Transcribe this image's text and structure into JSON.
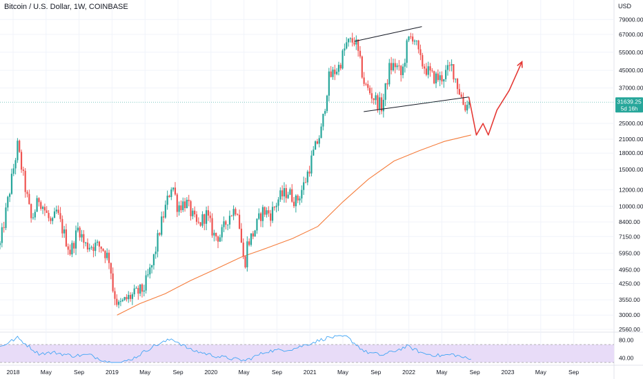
{
  "title": "Bitcoin / U.S. Dollar, 1W, COINBASE",
  "currency": "USD",
  "price_tag": {
    "price": "31639.25",
    "countdown": "5d 16h"
  },
  "colors": {
    "up": "#26a69a",
    "down": "#ef5350",
    "ma": "#f57c3b",
    "projection": "#e53935",
    "channel": "#131722",
    "rsi": "#42a5f5",
    "rsi_band": "#e8dcf8",
    "price_line": "#26a69a"
  },
  "chart_data": {
    "type": "candlestick",
    "y_scale": "log",
    "ylim": [
      2560,
      98000
    ],
    "y_ticks": [
      "79000.00",
      "67000.00",
      "55000.00",
      "45000.00",
      "37000.00",
      "31639.25",
      "25000.00",
      "21000.00",
      "18000.00",
      "15000.00",
      "12000.00",
      "10000.00",
      "8400.00",
      "7150.00",
      "5950.00",
      "4950.00",
      "4250.00",
      "3550.00",
      "3000.00",
      "2560.00"
    ],
    "x_ticks": [
      "2018",
      "May",
      "Sep",
      "2019",
      "May",
      "Sep",
      "2020",
      "May",
      "Sep",
      "2021",
      "May",
      "Sep",
      "2022",
      "May",
      "Sep",
      "2023",
      "May",
      "Sep"
    ],
    "xlim": [
      "2017-10-15",
      "2023-11-01"
    ],
    "price_series_dates": [
      "2017-10-15",
      "2017-12-17",
      "2018-02-05",
      "2018-03-05",
      "2018-04-20",
      "2018-05-05",
      "2018-06-25",
      "2018-07-25",
      "2018-08-15",
      "2018-09-15",
      "2018-10-15",
      "2018-11-14",
      "2018-11-25",
      "2018-12-15",
      "2019-01-15",
      "2019-02-15",
      "2019-03-15",
      "2019-04-15",
      "2019-05-15",
      "2019-06-26",
      "2019-07-15",
      "2019-08-15",
      "2019-09-15",
      "2019-09-26",
      "2019-10-26",
      "2019-11-25",
      "2019-12-18",
      "2020-01-15",
      "2020-02-15",
      "2020-03-12",
      "2020-03-20",
      "2020-04-15",
      "2020-05-15",
      "2020-06-15",
      "2020-07-15",
      "2020-08-15",
      "2020-09-15",
      "2020-10-15",
      "2020-11-15",
      "2020-12-15",
      "2021-01-08",
      "2021-02-15",
      "2021-03-13",
      "2021-04-14",
      "2021-05-19",
      "2021-06-22",
      "2021-07-20",
      "2021-08-15",
      "2021-09-07",
      "2021-09-28",
      "2021-10-20",
      "2021-11-10",
      "2021-12-04",
      "2022-01-15",
      "2022-02-15",
      "2022-03-28",
      "2022-04-15",
      "2022-05-12",
      "2022-06-03"
    ],
    "price_series_values": [
      6500,
      19500,
      8500,
      11000,
      8000,
      9500,
      6000,
      8000,
      6500,
      6500,
      6400,
      5500,
      4000,
      3300,
      3600,
      3800,
      4000,
      5200,
      8000,
      13000,
      10000,
      10500,
      8500,
      8000,
      9200,
      7200,
      7200,
      9000,
      10000,
      5000,
      6500,
      7500,
      9500,
      9200,
      11000,
      11800,
      10500,
      13000,
      18000,
      23500,
      41000,
      47000,
      60000,
      63000,
      38000,
      33000,
      30000,
      46000,
      48000,
      42000,
      62000,
      67000,
      50000,
      42000,
      41000,
      47000,
      39000,
      30000,
      31639.25
    ],
    "ma_200w": {
      "name": "",
      "dates": [
        "2018-12-10",
        "2019-03-01",
        "2019-06-01",
        "2019-09-01",
        "2019-12-01",
        "2020-03-01",
        "2020-06-01",
        "2020-09-01",
        "2020-12-01",
        "2021-03-01",
        "2021-06-01",
        "2021-09-01",
        "2021-12-01",
        "2022-03-01",
        "2022-06-05"
      ],
      "values": [
        3000,
        3400,
        3800,
        4400,
        5000,
        5700,
        6300,
        7000,
        8000,
        10500,
        13500,
        16500,
        18500,
        20500,
        22000
      ]
    },
    "channel_upper": {
      "dates": [
        "2021-04-12",
        "2021-12-10"
      ],
      "values": [
        62000,
        73000
      ]
    },
    "channel_lower": {
      "dates": [
        "2021-05-15",
        "2022-05-28"
      ],
      "values": [
        28500,
        33500
      ]
    },
    "projection": {
      "dates": [
        "2022-05-28",
        "2022-06-24",
        "2022-07-18",
        "2022-08-06",
        "2022-09-06",
        "2022-10-20",
        "2022-12-05"
      ],
      "values": [
        33500,
        22000,
        25000,
        22000,
        29000,
        36000,
        49500
      ]
    },
    "rsi": {
      "ylim": [
        30,
        90
      ],
      "y_ticks": [
        "80.00",
        "40.00"
      ],
      "band": [
        30,
        70
      ],
      "dates": [
        "2017-10-15",
        "2017-12-17",
        "2018-03-01",
        "2018-05-01",
        "2018-07-01",
        "2018-09-01",
        "2018-11-14",
        "2018-12-15",
        "2019-02-15",
        "2019-04-15",
        "2019-06-26",
        "2019-09-01",
        "2019-12-01",
        "2020-03-15",
        "2020-06-01",
        "2020-09-01",
        "2020-11-15",
        "2021-01-08",
        "2021-03-13",
        "2021-05-19",
        "2021-07-20",
        "2021-10-20",
        "2021-12-15",
        "2022-02-15",
        "2022-04-01",
        "2022-06-05"
      ],
      "values": [
        65,
        85,
        50,
        52,
        45,
        47,
        30,
        26,
        42,
        65,
        83,
        58,
        44,
        34,
        55,
        60,
        75,
        86,
        88,
        54,
        46,
        66,
        50,
        45,
        48,
        36
      ]
    }
  }
}
